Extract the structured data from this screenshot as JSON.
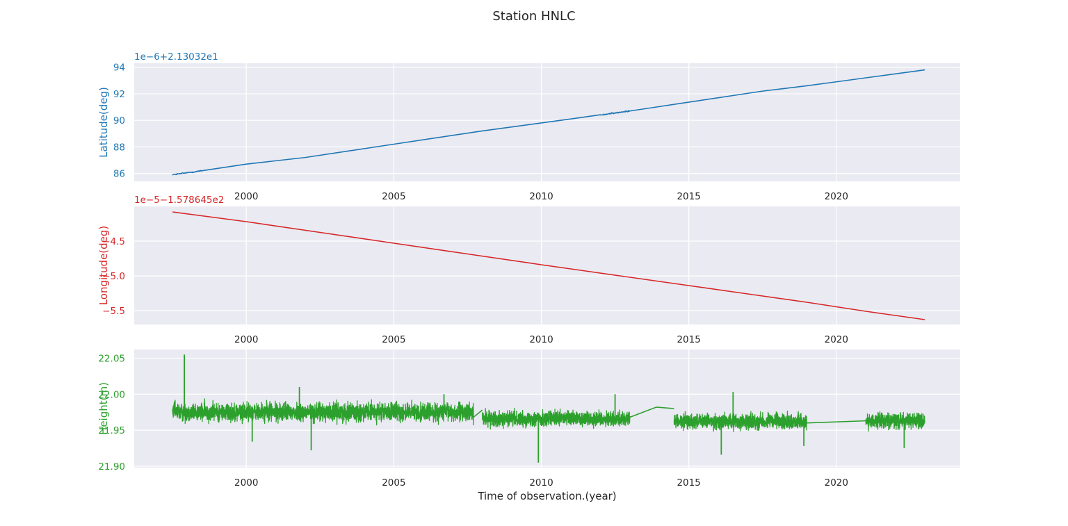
{
  "title": "Station HNLC",
  "chart_data": [
    {
      "type": "line",
      "ylabel": "Latitude(deg)",
      "offset_text": "1e−6+2.13032e1",
      "color": "#1f77b4",
      "xlim": [
        1996.2,
        2024.2
      ],
      "ylim": [
        85.4,
        94.3
      ],
      "x_ticks": [
        2000,
        2005,
        2010,
        2015,
        2020
      ],
      "x_tick_labels": [
        "2000",
        "2005",
        "2010",
        "2015",
        "2020"
      ],
      "y_ticks": [
        86,
        88,
        90,
        92,
        94
      ],
      "y_tick_labels": [
        "86",
        "88",
        "90",
        "92",
        "94"
      ],
      "grid": true,
      "series": [
        {
          "x": [
            1997.5,
            1998.5,
            2000.0,
            2002.0,
            2005.0,
            2008.0,
            2010.0,
            2012.0,
            2013.0,
            2014.5,
            2016.0,
            2017.5,
            2019.0,
            2021.0,
            2023.0
          ],
          "y": [
            85.9,
            86.2,
            86.7,
            87.2,
            88.2,
            89.2,
            89.8,
            90.4,
            90.7,
            91.2,
            91.7,
            92.2,
            92.6,
            93.2,
            93.8
          ],
          "noise": 0.05
        }
      ]
    },
    {
      "type": "line",
      "ylabel": "Longitude(deg)",
      "offset_text": "1e−5−1.578645e2",
      "color": "#d62728",
      "xlim": [
        1996.2,
        2024.2
      ],
      "ylim": [
        -5.7,
        -4.0
      ],
      "x_ticks": [
        2000,
        2005,
        2010,
        2015,
        2020
      ],
      "x_tick_labels": [
        "2000",
        "2005",
        "2010",
        "2015",
        "2020"
      ],
      "y_ticks": [
        -4.5,
        -5.0,
        -5.5
      ],
      "y_tick_labels": [
        "−4.5",
        "−5.0",
        "−5.5"
      ],
      "grid": true,
      "series": [
        {
          "x": [
            1997.5,
            2000.0,
            2005.0,
            2010.0,
            2013.0,
            2015.0,
            2019.0,
            2021.0,
            2023.0
          ],
          "y": [
            -4.08,
            -4.22,
            -4.53,
            -4.84,
            -5.02,
            -5.14,
            -5.38,
            -5.51,
            -5.63
          ],
          "noise": 0.004
        }
      ]
    },
    {
      "type": "line",
      "ylabel": "Height(m)",
      "xlabel": "Time of observation.(year)",
      "color": "#2ca02c",
      "xlim": [
        1996.2,
        2024.2
      ],
      "ylim": [
        21.898,
        22.062
      ],
      "x_ticks": [
        2000,
        2005,
        2010,
        2015,
        2020
      ],
      "x_tick_labels": [
        "2000",
        "2005",
        "2010",
        "2015",
        "2020"
      ],
      "y_ticks": [
        21.9,
        21.95,
        22.0,
        22.05
      ],
      "y_tick_labels": [
        "21.90",
        "21.95",
        "22.00",
        "22.05"
      ],
      "grid": true,
      "series": [
        {
          "segments": [
            {
              "x0": 1997.5,
              "x1": 2007.7,
              "mean": 21.975,
              "amp": 0.012
            },
            {
              "x0": 2008.0,
              "x1": 2013.0,
              "mean": 21.966,
              "amp": 0.01
            },
            {
              "x0": 2014.5,
              "x1": 2019.0,
              "mean": 21.962,
              "amp": 0.01
            },
            {
              "x0": 2021.0,
              "x1": 2023.0,
              "mean": 21.963,
              "amp": 0.01
            }
          ],
          "bridges": [
            {
              "x": [
                2007.7,
                2008.0
              ],
              "y": [
                21.968,
                21.978
              ]
            },
            {
              "x": [
                2013.0,
                2013.9,
                2014.5
              ],
              "y": [
                21.968,
                21.982,
                21.98
              ]
            },
            {
              "x": [
                2019.0,
                2021.0
              ],
              "y": [
                21.96,
                21.963
              ]
            }
          ],
          "spikes": [
            {
              "x": 1997.9,
              "y": 22.055
            },
            {
              "x": 2016.5,
              "y": 22.003
            },
            {
              "x": 2012.5,
              "y": 22.0
            },
            {
              "x": 2006.7,
              "y": 22.0
            },
            {
              "x": 2000.8,
              "y": 21.99
            },
            {
              "x": 2001.8,
              "y": 22.01
            },
            {
              "x": 2002.2,
              "y": 21.922
            },
            {
              "x": 2009.9,
              "y": 21.905
            },
            {
              "x": 2016.1,
              "y": 21.916
            },
            {
              "x": 2022.3,
              "y": 21.925
            },
            {
              "x": 2000.2,
              "y": 21.934
            },
            {
              "x": 2018.9,
              "y": 21.928
            }
          ]
        }
      ]
    }
  ]
}
